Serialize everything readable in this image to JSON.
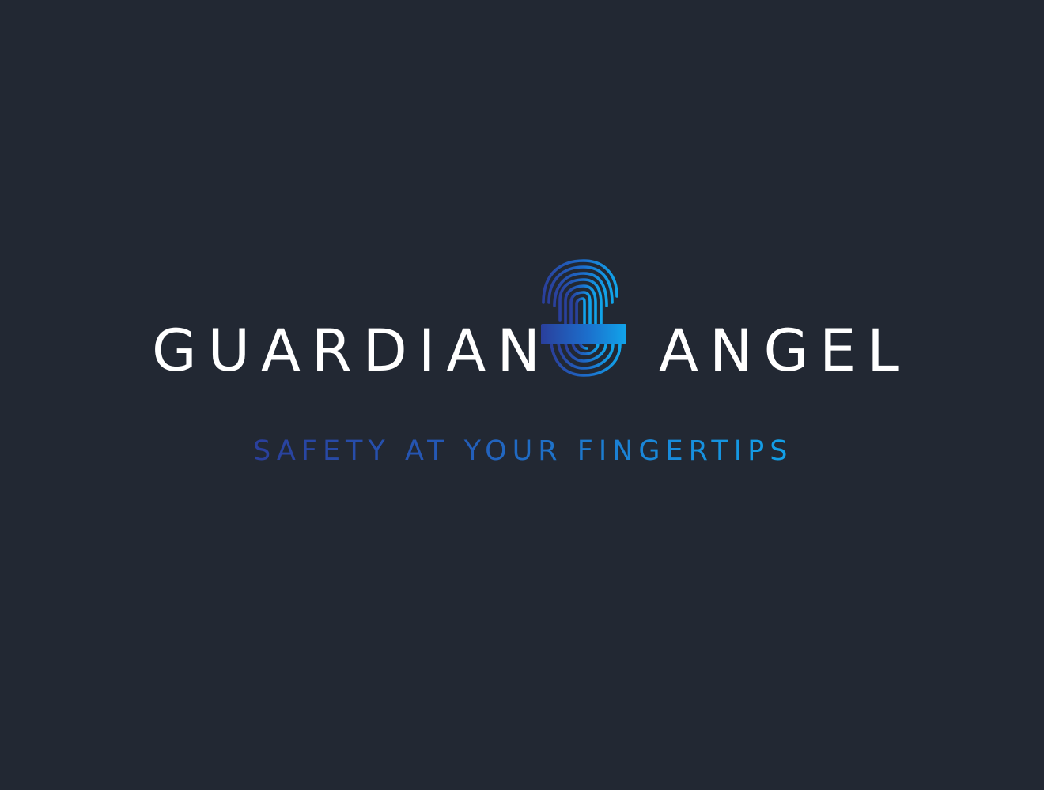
{
  "logo": {
    "word_left": "GUARDIAN",
    "word_right": "ANGEL",
    "icon": "fingerprint-icon",
    "tagline": "SAFETY AT YOUR FINGERTIPS"
  },
  "colors": {
    "background": "#222833",
    "wordmark": "#ffffff",
    "gradient_start": "#2a3f9c",
    "gradient_end": "#11a4ea"
  }
}
